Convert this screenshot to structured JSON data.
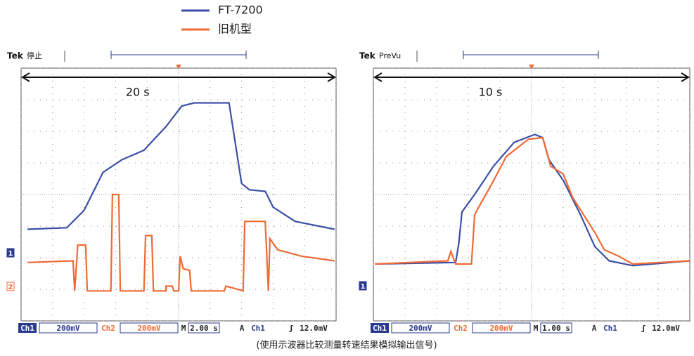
{
  "chart_data": [
    {
      "type": "line",
      "header": [
        "Tek",
        "停止"
      ],
      "annotation": "20 s",
      "xlim": [
        0,
        10
      ],
      "ylim": [
        -4,
        4
      ],
      "xticks": [
        0,
        1,
        2,
        3,
        4,
        5,
        6,
        7,
        8,
        9,
        10
      ],
      "yticks": [
        -4,
        -3,
        -2,
        -1,
        0,
        1,
        2,
        3,
        4
      ],
      "grid": true,
      "channel_markers": [
        "1",
        "2"
      ],
      "status": [
        "Ch1",
        "200mV",
        "Ch2",
        "200mV",
        "M",
        "2.00 s",
        "A",
        "Ch1",
        "ʃ",
        "12.0mV"
      ],
      "series": [
        {
          "name": "FT-7200",
          "color": "#3b4fa8",
          "x": [
            0.2,
            1.45,
            2.0,
            2.6,
            3.2,
            3.9,
            4.6,
            5.1,
            5.5,
            6.6,
            7.0,
            7.25,
            7.75,
            8.0,
            8.7,
            9.95
          ],
          "values": [
            -1.1,
            -1.05,
            -0.5,
            0.7,
            1.1,
            1.4,
            2.15,
            2.8,
            2.9,
            2.9,
            0.35,
            0.15,
            0.1,
            -0.4,
            -0.85,
            -1.1
          ]
        },
        {
          "name": "旧机型",
          "color": "#f06a35",
          "x": [
            0.2,
            1.65,
            1.7,
            1.8,
            2.05,
            2.1,
            2.85,
            2.9,
            3.1,
            3.15,
            3.9,
            3.95,
            4.15,
            4.2,
            4.6,
            4.6,
            4.8,
            4.85,
            5.0,
            5.05,
            5.15,
            5.35,
            5.4,
            6.45,
            6.5,
            6.7,
            7.05,
            7.1,
            7.75,
            7.85,
            7.9,
            8.15,
            8.9,
            9.95
          ],
          "values": [
            -2.15,
            -2.1,
            -3.05,
            -1.6,
            -1.6,
            -3.05,
            -3.05,
            0,
            0,
            -3.05,
            -3.05,
            -1.3,
            -1.3,
            -3.05,
            -3.05,
            -2.9,
            -2.9,
            -3.05,
            -3.05,
            -1.95,
            -2.35,
            -2.4,
            -3.05,
            -3.05,
            -2.9,
            -2.95,
            -3.05,
            -0.85,
            -0.85,
            -3.05,
            -1.4,
            -1.75,
            -1.95,
            -2.1
          ]
        }
      ]
    },
    {
      "type": "line",
      "header": [
        "Tek",
        "PreVu"
      ],
      "annotation": "10 s",
      "xlim": [
        0,
        10
      ],
      "ylim": [
        -4,
        4
      ],
      "xticks": [
        0,
        1,
        2,
        3,
        4,
        5,
        6,
        7,
        8,
        9,
        10
      ],
      "yticks": [
        -4,
        -3,
        -2,
        -1,
        0,
        1,
        2,
        3,
        4
      ],
      "grid": true,
      "channel_markers": [
        "1"
      ],
      "status": [
        "Ch1",
        "200mV",
        "Ch2",
        "200mV",
        "M",
        "1.00 s",
        "A",
        "Ch1",
        "ʃ",
        "12.0mV"
      ],
      "series": [
        {
          "color": "#3b4fa8",
          "x": [
            0.05,
            2.6,
            2.7,
            2.8,
            3.2,
            3.8,
            4.45,
            5.1,
            5.35,
            5.55,
            6.0,
            6.55,
            7.0,
            7.45,
            8.2,
            10
          ],
          "values": [
            -2.2,
            -2.15,
            -1.55,
            -0.55,
            0,
            0.9,
            1.65,
            1.9,
            1.8,
            1.1,
            0.45,
            -0.65,
            -1.65,
            -2.1,
            -2.25,
            -2.1
          ]
        },
        {
          "color": "#f06a35",
          "x": [
            0.05,
            2.35,
            2.45,
            2.6,
            3.1,
            3.2,
            3.3,
            3.75,
            4.2,
            4.9,
            5.35,
            5.6,
            6.0,
            6.3,
            6.65,
            7.0,
            7.3,
            7.75,
            8.2,
            10
          ],
          "values": [
            -2.2,
            -2.1,
            -1.8,
            -2.2,
            -2.2,
            -0.65,
            -0.45,
            0.35,
            1.2,
            1.75,
            1.8,
            0.9,
            0.65,
            -0.1,
            -0.65,
            -1.2,
            -1.75,
            -1.95,
            -2.2,
            -2.1
          ]
        }
      ]
    }
  ],
  "caption": "(使用示波器比较测量转速结果模拟输出信号)"
}
